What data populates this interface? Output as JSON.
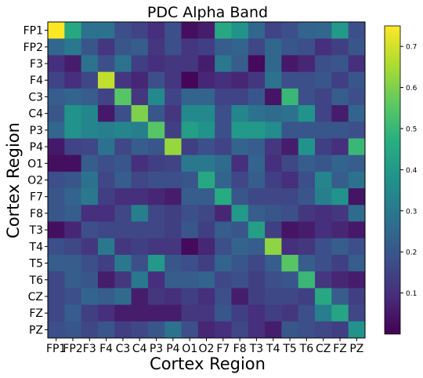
{
  "chart_data": {
    "type": "heatmap",
    "title": "PDC Alpha Band",
    "xlabel": "Cortex Region",
    "ylabel": "Cortex Region",
    "rows": [
      "FP1",
      "FP2",
      "F3",
      "F4",
      "C3",
      "C4",
      "P3",
      "P4",
      "O1",
      "O2",
      "F7",
      "F8",
      "T3",
      "T4",
      "T5",
      "T6",
      "CZ",
      "FZ",
      "PZ"
    ],
    "cols": [
      "FP1",
      "FP2",
      "F3",
      "F4",
      "C3",
      "C4",
      "P3",
      "P4",
      "O1",
      "O2",
      "F7",
      "F8",
      "T3",
      "T4",
      "T5",
      "T6",
      "CZ",
      "FZ",
      "PZ"
    ],
    "colormap": "viridis",
    "vmin": 0.0,
    "vmax": 0.75,
    "colorbar_ticks": [
      0.1,
      0.2,
      0.3,
      0.4,
      0.5,
      0.6,
      0.7
    ],
    "values": [
      [
        0.75,
        0.45,
        0.28,
        0.28,
        0.18,
        0.15,
        0.1,
        0.18,
        0.03,
        0.06,
        0.45,
        0.38,
        0.25,
        0.15,
        0.18,
        0.24,
        0.25,
        0.4,
        0.18
      ],
      [
        0.25,
        0.3,
        0.2,
        0.12,
        0.2,
        0.22,
        0.12,
        0.18,
        0.12,
        0.14,
        0.22,
        0.24,
        0.16,
        0.25,
        0.2,
        0.18,
        0.1,
        0.14,
        0.2
      ],
      [
        0.1,
        0.06,
        0.28,
        0.18,
        0.28,
        0.14,
        0.1,
        0.12,
        0.12,
        0.06,
        0.3,
        0.22,
        0.02,
        0.25,
        0.05,
        0.08,
        0.18,
        0.2,
        0.1
      ],
      [
        0.15,
        0.1,
        0.16,
        0.68,
        0.12,
        0.08,
        0.18,
        0.12,
        0.01,
        0.08,
        0.1,
        0.08,
        0.12,
        0.28,
        0.18,
        0.18,
        0.2,
        0.14,
        0.2
      ],
      [
        0.22,
        0.24,
        0.22,
        0.15,
        0.55,
        0.12,
        0.35,
        0.15,
        0.24,
        0.24,
        0.15,
        0.15,
        0.2,
        0.04,
        0.5,
        0.18,
        0.15,
        0.22,
        0.18
      ],
      [
        0.2,
        0.38,
        0.34,
        0.05,
        0.18,
        0.6,
        0.2,
        0.12,
        0.35,
        0.35,
        0.18,
        0.34,
        0.28,
        0.26,
        0.28,
        0.38,
        0.15,
        0.06,
        0.24
      ],
      [
        0.25,
        0.38,
        0.34,
        0.32,
        0.34,
        0.32,
        0.55,
        0.14,
        0.42,
        0.38,
        0.18,
        0.4,
        0.4,
        0.36,
        0.2,
        0.2,
        0.2,
        0.2,
        0.18
      ],
      [
        0.05,
        0.15,
        0.16,
        0.28,
        0.16,
        0.22,
        0.2,
        0.63,
        0.14,
        0.18,
        0.15,
        0.24,
        0.22,
        0.12,
        0.06,
        0.38,
        0.14,
        0.1,
        0.5
      ],
      [
        0.03,
        0.03,
        0.22,
        0.18,
        0.2,
        0.1,
        0.14,
        0.15,
        0.3,
        0.3,
        0.26,
        0.1,
        0.24,
        0.1,
        0.16,
        0.22,
        0.2,
        0.24,
        0.22
      ],
      [
        0.18,
        0.2,
        0.28,
        0.16,
        0.22,
        0.16,
        0.18,
        0.18,
        0.2,
        0.45,
        0.24,
        0.16,
        0.22,
        0.14,
        0.1,
        0.18,
        0.34,
        0.22,
        0.28
      ],
      [
        0.2,
        0.24,
        0.3,
        0.14,
        0.1,
        0.1,
        0.08,
        0.06,
        0.22,
        0.22,
        0.46,
        0.2,
        0.16,
        0.16,
        0.16,
        0.2,
        0.32,
        0.38,
        0.04
      ],
      [
        0.2,
        0.22,
        0.1,
        0.1,
        0.16,
        0.32,
        0.16,
        0.14,
        0.18,
        0.16,
        0.08,
        0.4,
        0.22,
        0.2,
        0.18,
        0.12,
        0.1,
        0.12,
        0.26
      ],
      [
        0.03,
        0.08,
        0.18,
        0.16,
        0.16,
        0.16,
        0.16,
        0.14,
        0.2,
        0.14,
        0.22,
        0.2,
        0.42,
        0.14,
        0.04,
        0.06,
        0.1,
        0.08,
        0.05
      ],
      [
        0.18,
        0.16,
        0.12,
        0.3,
        0.12,
        0.14,
        0.12,
        0.12,
        0.02,
        0.08,
        0.18,
        0.24,
        0.22,
        0.62,
        0.1,
        0.12,
        0.18,
        0.22,
        0.18
      ],
      [
        0.22,
        0.22,
        0.18,
        0.14,
        0.3,
        0.18,
        0.4,
        0.2,
        0.18,
        0.14,
        0.24,
        0.2,
        0.16,
        0.22,
        0.55,
        0.22,
        0.18,
        0.14,
        0.22
      ],
      [
        0.16,
        0.22,
        0.2,
        0.06,
        0.12,
        0.3,
        0.1,
        0.22,
        0.22,
        0.24,
        0.16,
        0.18,
        0.14,
        0.18,
        0.2,
        0.5,
        0.12,
        0.08,
        0.06
      ],
      [
        0.16,
        0.18,
        0.24,
        0.22,
        0.26,
        0.06,
        0.12,
        0.1,
        0.14,
        0.1,
        0.18,
        0.06,
        0.14,
        0.16,
        0.16,
        0.14,
        0.45,
        0.22,
        0.14
      ],
      [
        0.16,
        0.22,
        0.14,
        0.1,
        0.06,
        0.06,
        0.06,
        0.06,
        0.12,
        0.12,
        0.2,
        0.14,
        0.1,
        0.14,
        0.12,
        0.18,
        0.32,
        0.44,
        0.16
      ],
      [
        0.18,
        0.2,
        0.16,
        0.2,
        0.14,
        0.16,
        0.2,
        0.28,
        0.18,
        0.08,
        0.1,
        0.16,
        0.1,
        0.06,
        0.2,
        0.18,
        0.16,
        0.14,
        0.38
      ]
    ]
  }
}
